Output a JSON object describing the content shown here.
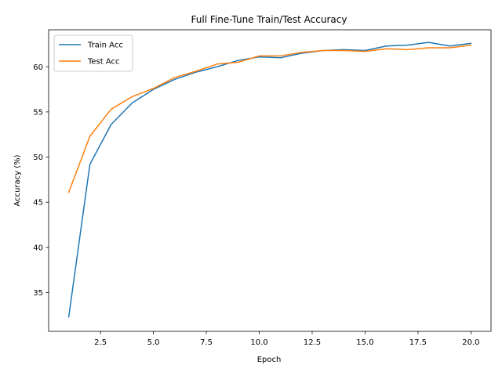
{
  "chart_data": {
    "type": "line",
    "title": "Full Fine-Tune Train/Test Accuracy",
    "xlabel": "Epoch",
    "ylabel": "Accuracy (%)",
    "xlim": [
      0.05,
      20.95
    ],
    "ylim": [
      30.7,
      64.1
    ],
    "xticks": [
      2.5,
      5.0,
      7.5,
      10.0,
      12.5,
      15.0,
      17.5,
      20.0
    ],
    "xtick_labels": [
      "2.5",
      "5.0",
      "7.5",
      "10.0",
      "12.5",
      "15.0",
      "17.5",
      "20.0"
    ],
    "yticks": [
      35,
      40,
      45,
      50,
      55,
      60
    ],
    "ytick_labels": [
      "35",
      "40",
      "45",
      "50",
      "55",
      "60"
    ],
    "grid": false,
    "legend_position": "upper-left",
    "x": [
      1,
      2,
      3,
      4,
      5,
      6,
      7,
      8,
      9,
      10,
      11,
      12,
      13,
      14,
      15,
      16,
      17,
      18,
      19,
      20
    ],
    "series": [
      {
        "name": "Train Acc",
        "color": "#1f77b4",
        "values": [
          32.3,
          49.2,
          53.6,
          56.0,
          57.5,
          58.6,
          59.4,
          60.0,
          60.7,
          61.1,
          61.0,
          61.5,
          61.8,
          61.9,
          61.8,
          62.3,
          62.4,
          62.7,
          62.3,
          62.6
        ]
      },
      {
        "name": "Test Acc",
        "color": "#ff7f0e",
        "values": [
          46.1,
          52.3,
          55.3,
          56.7,
          57.6,
          58.8,
          59.5,
          60.3,
          60.5,
          61.2,
          61.2,
          61.6,
          61.8,
          61.8,
          61.7,
          62.0,
          61.9,
          62.1,
          62.1,
          62.4
        ]
      }
    ]
  }
}
